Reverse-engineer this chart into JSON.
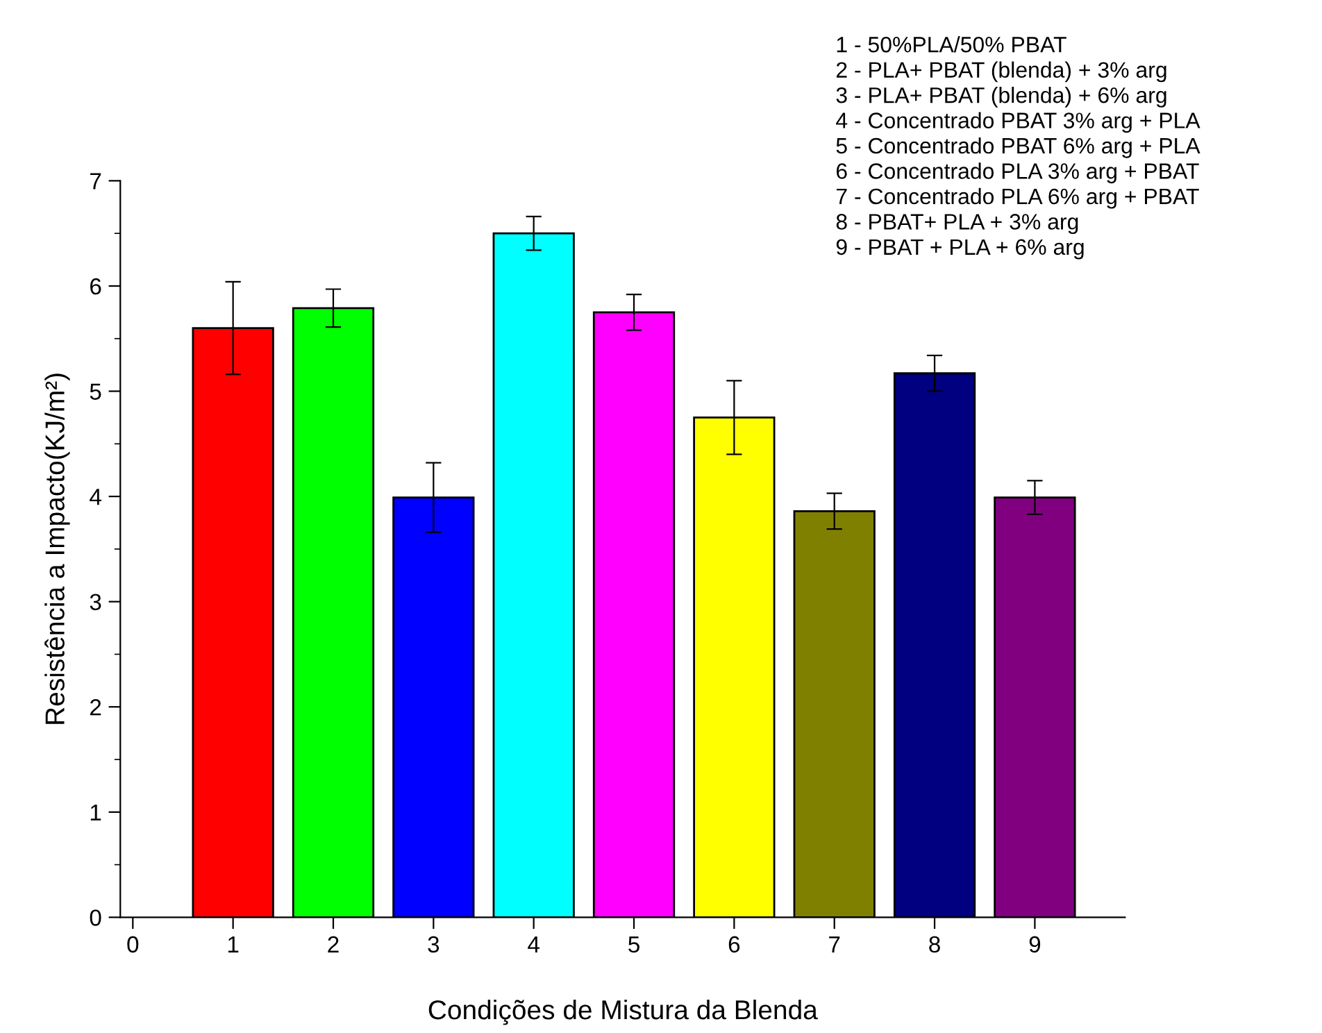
{
  "chart_data": {
    "type": "bar",
    "xlabel": "Condições de Mistura da Blenda",
    "ylabel": "Resistência a Impacto(KJ/m²)",
    "x": [
      1,
      2,
      3,
      4,
      5,
      6,
      7,
      8,
      9
    ],
    "values": [
      5.6,
      5.79,
      3.99,
      6.5,
      5.75,
      4.75,
      3.86,
      5.17,
      3.99
    ],
    "errors": [
      0.44,
      0.18,
      0.33,
      0.16,
      0.17,
      0.35,
      0.17,
      0.17,
      0.16
    ],
    "colors": [
      "#ff0000",
      "#00ff00",
      "#0000ff",
      "#00ffff",
      "#ff00ff",
      "#ffff00",
      "#808000",
      "#000080",
      "#800080"
    ],
    "xlim": [
      -0.125,
      9.9
    ],
    "xticks": [
      0,
      1,
      2,
      3,
      4,
      5,
      6,
      7,
      8,
      9
    ],
    "ylim": [
      0,
      7
    ],
    "yticks": [
      0,
      1,
      2,
      3,
      4,
      5,
      6,
      7
    ],
    "grid": false,
    "annotations": [
      "1 - 50%PLA/50% PBAT",
      "2 - PLA+ PBAT (blenda) + 3% arg",
      "3 - PLA+ PBAT (blenda) + 6% arg",
      "4 - Concentrado PBAT 3% arg + PLA",
      "5 - Concentrado PBAT 6% arg + PLA",
      "6 - Concentrado PLA 3% arg + PBAT",
      "7 - Concentrado PLA 6% arg + PBAT",
      "8 - PBAT+ PLA + 3% arg",
      "9 - PBAT + PLA + 6% arg"
    ]
  }
}
